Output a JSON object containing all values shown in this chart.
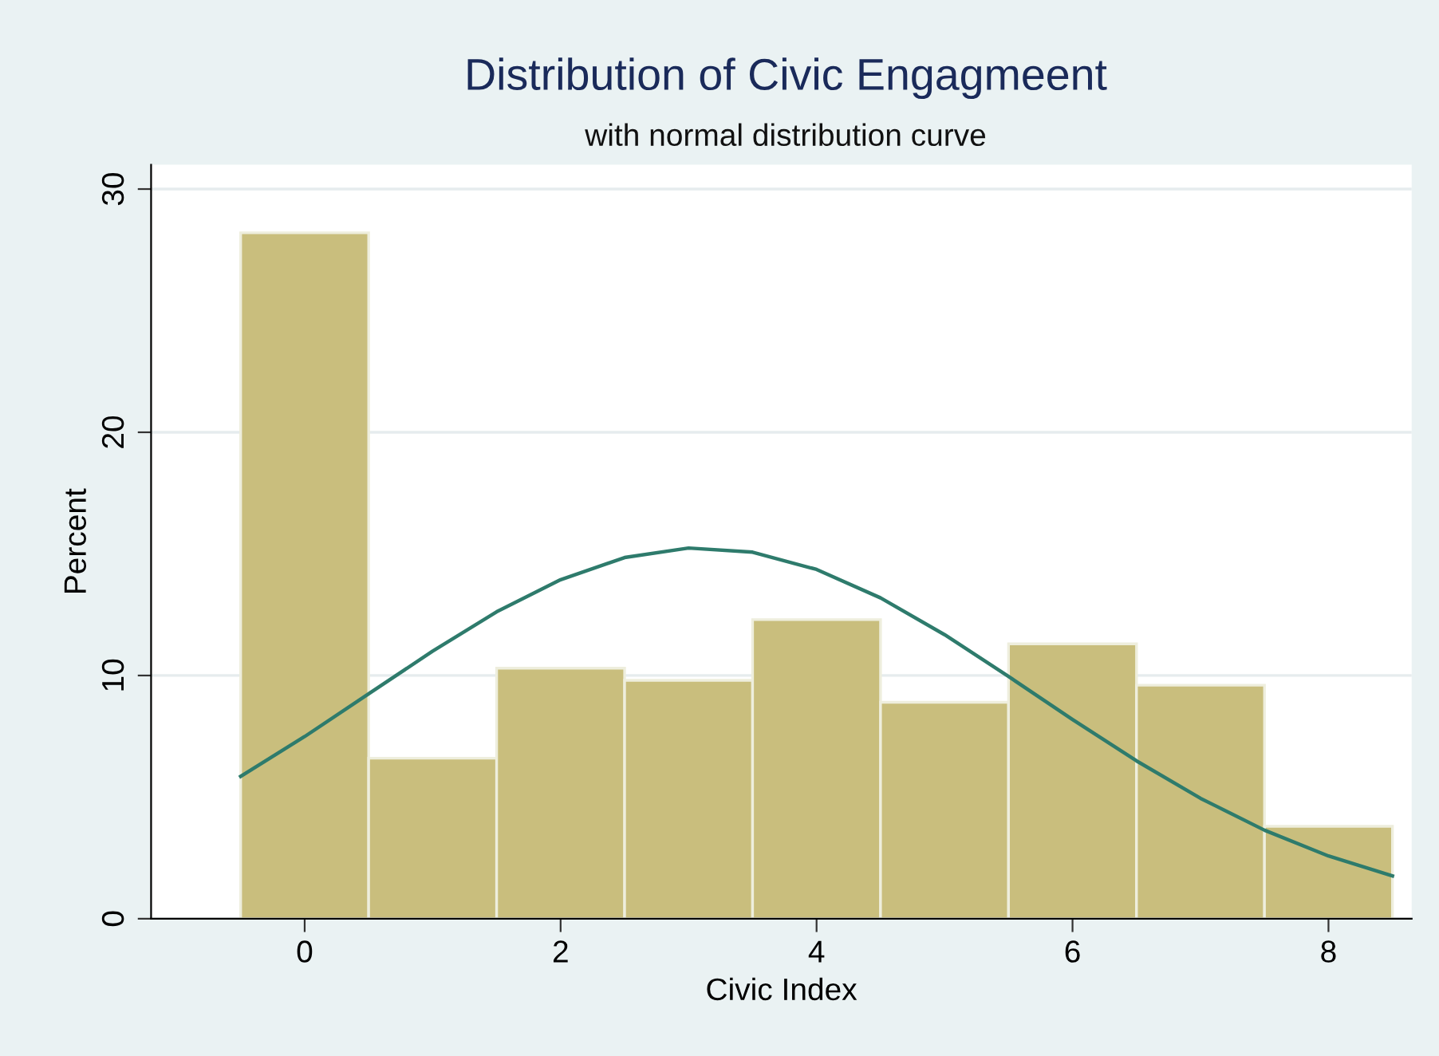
{
  "chart_data": {
    "type": "histogram",
    "title": "Distribution of Civic Engagmeent",
    "subtitle": "with normal distribution curve",
    "xlabel": "Civic Index",
    "ylabel": "Percent",
    "bins": [
      -0.5,
      0.5,
      1.5,
      2.5,
      3.5,
      4.5,
      5.5,
      6.5,
      7.5,
      8.5
    ],
    "values": [
      28.2,
      6.6,
      10.3,
      9.8,
      12.3,
      8.9,
      11.3,
      9.6,
      3.8
    ],
    "color": "#c9be7d",
    "series": [
      {
        "type": "line",
        "color": "#2e7b6c",
        "x": [
          -0.5,
          0,
          0.5,
          1,
          1.5,
          2,
          2.5,
          3,
          3.5,
          4,
          4.5,
          5,
          5.5,
          6,
          6.5,
          7,
          7.5,
          8,
          8.5
        ],
        "values": [
          5.85,
          7.49,
          9.25,
          11.0,
          12.62,
          13.94,
          14.85,
          15.24,
          15.07,
          14.36,
          13.19,
          11.68,
          9.96,
          8.19,
          6.49,
          4.95,
          3.64,
          2.58,
          1.76
        ]
      }
    ],
    "xlim": [
      -1.2,
      8.65
    ],
    "xticks": [
      0,
      2,
      4,
      6,
      8
    ],
    "ylim": [
      0,
      31
    ],
    "yticks": [
      0,
      10,
      20,
      30
    ],
    "grid": "y",
    "legend": false
  }
}
